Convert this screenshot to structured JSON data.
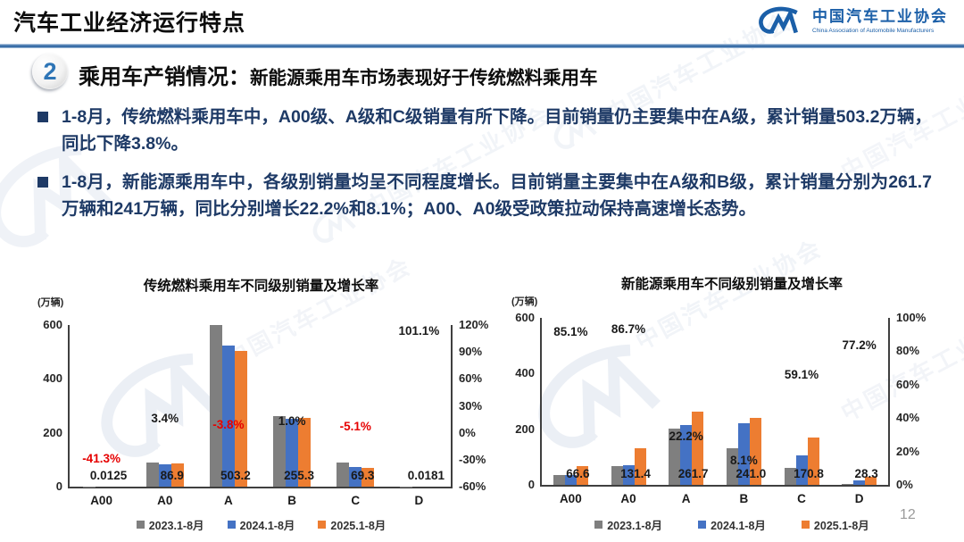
{
  "header": {
    "title": "汽车工业经济运行特点",
    "logo": {
      "cn": "中国汽车工业协会",
      "en": "China Association of Automobile Manufacturers"
    }
  },
  "section": {
    "number": "2",
    "title": "乘用车产销情况：",
    "subtitle": "新能源乘用车市场表现好于传统燃料乘用车"
  },
  "bullets": [
    {
      "text": "1-8月，传统燃料乘用车中，A00级、A级和C级销量有所下降。目前销量仍主要集中在A级，累计销量503.2万辆，同比下降3.8%。"
    },
    {
      "text": "1-8月，新能源乘用车中，各级别销量均呈不同程度增长。目前销量主要集中在A级和B级，累计销量分别为261.7万辆和241万辆，同比分别增长22.2%和8.1%；A00、A0级受政策拉动保持高速增长态势。"
    }
  ],
  "watermark": {
    "text": "中国汽车工业协会"
  },
  "page_number": "12",
  "colors": {
    "accent_blue": "#2E75B6",
    "navy_text": "#1E3A66",
    "logo_blue": "#1B5FA8",
    "negative_red": "#E60000",
    "axis": "#3F3F3F",
    "series_gray": "#7F7F7F",
    "series_blue": "#4472C4",
    "series_orange": "#ED7D31"
  },
  "chart_data": [
    {
      "type": "bar",
      "title": "传统燃料乘用车不同级别销量及增长率",
      "unit_label": "(万辆)",
      "categories": [
        "A00",
        "A0",
        "A",
        "B",
        "C",
        "D"
      ],
      "series": [
        {
          "name": "2023.1-8月",
          "color": "#7F7F7F",
          "values": [
            1,
            88,
            600,
            262,
            88,
            1
          ]
        },
        {
          "name": "2024.1-8月",
          "color": "#4472C4",
          "values": [
            0.02,
            84,
            523,
            252.8,
            73,
            0.01
          ]
        },
        {
          "name": "2025.1-8月",
          "color": "#ED7D31",
          "values": [
            0.0125,
            86.9,
            503.2,
            255.3,
            69.3,
            0.0181
          ]
        }
      ],
      "value_labels": [
        "0.0125",
        "86.9",
        "503.2",
        "255.3",
        "69.3",
        "0.0181"
      ],
      "growth": [
        {
          "label": "-41.3%",
          "value": -41.3,
          "color": "#E60000"
        },
        {
          "label": "3.4%",
          "value": 3.4,
          "color": "#1a1a1a"
        },
        {
          "label": "-3.8%",
          "value": -3.8,
          "color": "#E60000"
        },
        {
          "label": "1.0%",
          "value": 1.0,
          "color": "#1a1a1a"
        },
        {
          "label": "-5.1%",
          "value": -5.1,
          "color": "#E60000"
        },
        {
          "label": "101.1%",
          "value": 101.1,
          "color": "#1a1a1a"
        }
      ],
      "left_axis": {
        "ticks": [
          0,
          200,
          400,
          600
        ],
        "max": 600,
        "label_suffix": ""
      },
      "right_axis": {
        "ticks": [
          "-60%",
          "-30%",
          "0%",
          "30%",
          "60%",
          "90%",
          "120%"
        ],
        "min": -60,
        "max": 120
      },
      "legend_position": "bottom"
    },
    {
      "type": "bar",
      "title": "新能源乘用车不同级别销量及增长率",
      "unit_label": "(万辆)",
      "categories": [
        "A00",
        "A0",
        "A",
        "B",
        "C",
        "D"
      ],
      "series": [
        {
          "name": "2023.1-8月",
          "color": "#7F7F7F",
          "values": [
            36,
            66,
            201,
            130,
            60,
            3
          ]
        },
        {
          "name": "2024.1-8月",
          "color": "#4472C4",
          "values": [
            36,
            70,
            214,
            223,
            107,
            16
          ]
        },
        {
          "name": "2025.1-8月",
          "color": "#ED7D31",
          "values": [
            66.6,
            131.4,
            261.7,
            241.0,
            170.8,
            28.3
          ]
        }
      ],
      "value_labels": [
        "66.6",
        "131.4",
        "261.7",
        "241.0",
        "170.8",
        "28.3"
      ],
      "growth": [
        {
          "label": "85.1%",
          "value": 85.1,
          "color": "#1a1a1a"
        },
        {
          "label": "86.7%",
          "value": 86.7,
          "color": "#1a1a1a"
        },
        {
          "label": "22.2%",
          "value": 22.2,
          "color": "#1a1a1a"
        },
        {
          "label": "8.1%",
          "value": 8.1,
          "color": "#1a1a1a"
        },
        {
          "label": "59.1%",
          "value": 59.1,
          "color": "#1a1a1a"
        },
        {
          "label": "77.2%",
          "value": 77.2,
          "color": "#1a1a1a"
        }
      ],
      "left_axis": {
        "ticks": [
          0,
          200,
          400,
          600
        ],
        "max": 600,
        "label_suffix": ""
      },
      "right_axis": {
        "ticks": [
          "0%",
          "20%",
          "40%",
          "60%",
          "80%",
          "100%"
        ],
        "min": 0,
        "max": 100
      },
      "legend_position": "bottom"
    }
  ]
}
